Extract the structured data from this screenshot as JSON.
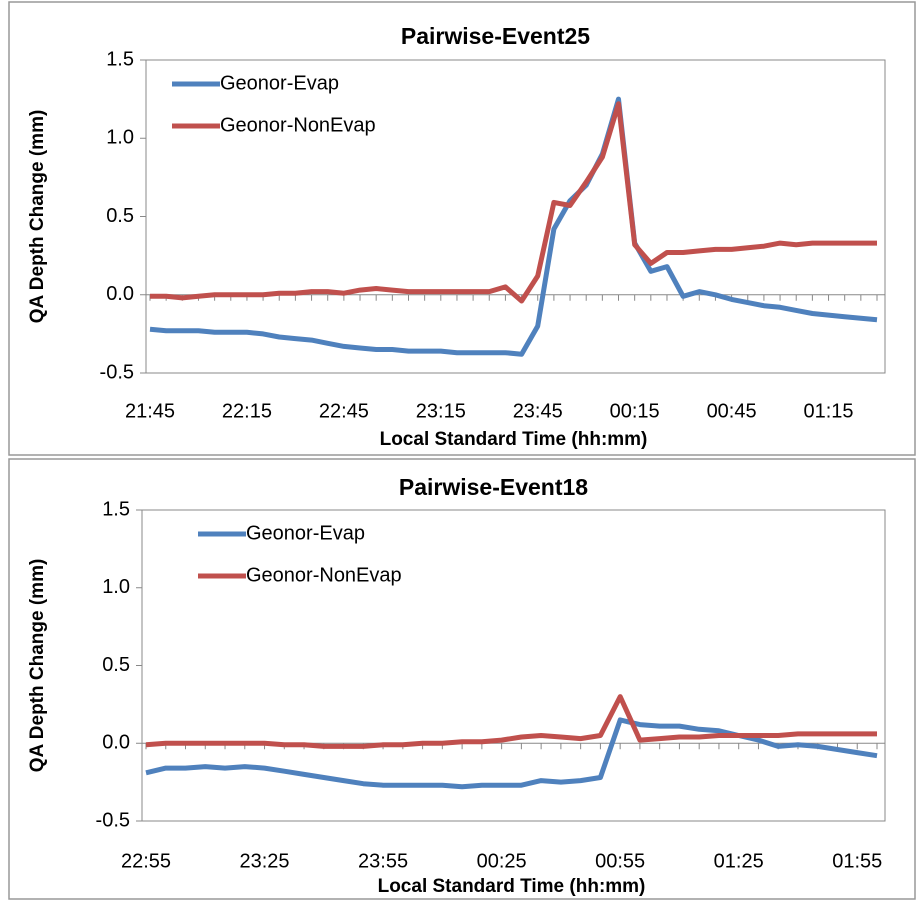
{
  "chart_data": [
    {
      "type": "line",
      "title": "Pairwise-Event25",
      "xlabel": "Local Standard Time (hh:mm)",
      "ylabel": "QA Depth Change (mm)",
      "categories": [
        "21:45",
        null,
        null,
        null,
        null,
        null,
        "22:15",
        null,
        null,
        null,
        null,
        null,
        "22:45",
        null,
        null,
        null,
        null,
        null,
        "23:15",
        null,
        null,
        null,
        null,
        null,
        "23:45",
        null,
        null,
        null,
        null,
        null,
        "00:15",
        null,
        null,
        null,
        null,
        null,
        "00:45",
        null,
        null,
        null,
        null,
        null,
        "01:15",
        null,
        null,
        null
      ],
      "series": [
        {
          "name": "Geonor-Evap",
          "color": "#4f81bd",
          "values": [
            -0.22,
            -0.23,
            -0.23,
            -0.23,
            -0.24,
            -0.24,
            -0.24,
            -0.25,
            -0.27,
            -0.28,
            -0.29,
            -0.31,
            -0.33,
            -0.34,
            -0.35,
            -0.35,
            -0.36,
            -0.36,
            -0.36,
            -0.37,
            -0.37,
            -0.37,
            -0.37,
            -0.38,
            -0.2,
            0.42,
            0.6,
            0.7,
            0.9,
            1.25,
            0.33,
            0.15,
            0.18,
            -0.01,
            0.02,
            0.0,
            -0.03,
            -0.05,
            -0.07,
            -0.08,
            -0.1,
            -0.12,
            -0.13,
            -0.14,
            -0.15,
            -0.16
          ]
        },
        {
          "name": "Geonor-NonEvap",
          "color": "#c0504d",
          "values": [
            -0.01,
            -0.01,
            -0.02,
            -0.01,
            0,
            0,
            0,
            0,
            0.01,
            0.01,
            0.02,
            0.02,
            0.01,
            0.03,
            0.04,
            0.03,
            0.02,
            0.02,
            0.02,
            0.02,
            0.02,
            0.02,
            0.05,
            -0.04,
            0.12,
            0.59,
            0.57,
            0.72,
            0.88,
            1.22,
            0.32,
            0.2,
            0.27,
            0.27,
            0.28,
            0.29,
            0.29,
            0.3,
            0.31,
            0.33,
            0.32,
            0.33,
            0.33,
            0.33,
            0.33,
            0.33
          ]
        }
      ],
      "ylim": [
        -0.5,
        1.5
      ],
      "yticks": [
        -0.5,
        {
          "value": 0,
          "label": "0.0"
        },
        0.5,
        {
          "value": 1,
          "label": "1.0"
        },
        1.5
      ]
    },
    {
      "type": "line",
      "title": "Pairwise-Event18",
      "xlabel": "Local Standard Time (hh:mm)",
      "ylabel": "QA Depth Change (mm)",
      "categories": [
        "22:55",
        null,
        null,
        null,
        null,
        null,
        "23:25",
        null,
        null,
        null,
        null,
        null,
        "23:55",
        null,
        null,
        null,
        null,
        null,
        "00:25",
        null,
        null,
        null,
        null,
        null,
        "00:55",
        null,
        null,
        null,
        null,
        null,
        "01:25",
        null,
        null,
        null,
        null,
        null,
        "01:55",
        null
      ],
      "series": [
        {
          "name": "Geonor-Evap",
          "color": "#4f81bd",
          "values": [
            -0.19,
            -0.16,
            -0.16,
            -0.15,
            -0.16,
            -0.15,
            -0.16,
            -0.18,
            -0.2,
            -0.22,
            -0.24,
            -0.26,
            -0.27,
            -0.27,
            -0.27,
            -0.27,
            -0.28,
            -0.27,
            -0.27,
            -0.27,
            -0.24,
            -0.25,
            -0.24,
            -0.22,
            0.15,
            0.12,
            0.11,
            0.11,
            0.09,
            0.08,
            0.05,
            0.02,
            -0.02,
            -0.01,
            -0.02,
            -0.04,
            -0.06,
            -0.08
          ]
        },
        {
          "name": "Geonor-NonEvap",
          "color": "#c0504d",
          "values": [
            -0.01,
            0,
            0,
            0,
            0,
            0,
            0,
            -0.01,
            -0.01,
            -0.02,
            -0.02,
            -0.02,
            -0.01,
            -0.01,
            0,
            0,
            0.01,
            0.01,
            0.02,
            0.04,
            0.05,
            0.04,
            0.03,
            0.05,
            0.3,
            0.02,
            0.03,
            0.04,
            0.04,
            0.05,
            0.05,
            0.05,
            0.05,
            0.06,
            0.06,
            0.06,
            0.06,
            0.06
          ]
        }
      ],
      "ylim": [
        -0.5,
        1.5
      ],
      "yticks": [
        -0.5,
        {
          "value": 0,
          "label": "0.0"
        },
        0.5,
        {
          "value": 1,
          "label": "1.0"
        },
        1.5
      ]
    }
  ]
}
